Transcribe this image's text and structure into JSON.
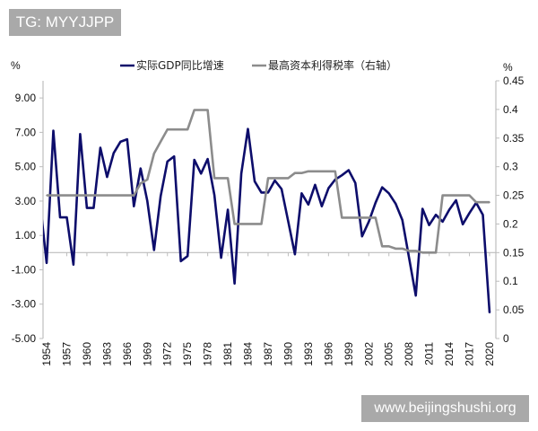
{
  "watermark_top": "TG: MYYJJPP",
  "watermark_bottom": "www.beijingshushi.org",
  "chart_data": {
    "type": "line",
    "left_unit": "%",
    "right_unit": "%",
    "ylim_left": [
      -5,
      10
    ],
    "ylim_right": [
      0,
      0.45
    ],
    "xlim": [
      1954,
      2020
    ],
    "left_tick_labels": [
      "9.00",
      "7.00",
      "5.00",
      "3.00",
      "1.00",
      "-1.00",
      "-3.00",
      "-5.00"
    ],
    "right_tick_labels": [
      "0.45",
      "0.4",
      "0.35",
      "0.3",
      "0.25",
      "0.2",
      "0.15",
      "0.1",
      "0.05",
      "0"
    ],
    "x_tick_labels": [
      "1954",
      "1957",
      "1960",
      "1963",
      "1966",
      "1969",
      "1972",
      "1975",
      "1978",
      "1981",
      "1984",
      "1987",
      "1990",
      "1993",
      "1996",
      "1999",
      "2002",
      "2005",
      "2008",
      "2011",
      "2014",
      "2017",
      "2020"
    ],
    "legend_position": "top",
    "grid": false,
    "x": [
      1953,
      1954,
      1955,
      1956,
      1957,
      1958,
      1959,
      1960,
      1961,
      1962,
      1963,
      1964,
      1965,
      1966,
      1967,
      1968,
      1969,
      1970,
      1971,
      1972,
      1973,
      1974,
      1975,
      1976,
      1977,
      1978,
      1979,
      1980,
      1981,
      1982,
      1983,
      1984,
      1985,
      1986,
      1987,
      1988,
      1989,
      1990,
      1991,
      1992,
      1993,
      1994,
      1995,
      1996,
      1997,
      1998,
      1999,
      2000,
      2001,
      2002,
      2003,
      2004,
      2005,
      2006,
      2007,
      2008,
      2009,
      2010,
      2011,
      2012,
      2013,
      2014,
      2015,
      2016,
      2017,
      2018,
      2019,
      2020
    ],
    "series": [
      {
        "name": "实际GDP同比增速",
        "axis": "left",
        "color": "#0d0d6b",
        "values": [
          3.0,
          -0.6,
          7.1,
          2.05,
          2.05,
          -0.7,
          6.9,
          2.6,
          2.6,
          6.1,
          4.4,
          5.8,
          6.45,
          6.6,
          2.7,
          4.9,
          3.0,
          0.15,
          3.3,
          5.3,
          5.6,
          -0.5,
          -0.2,
          5.4,
          4.6,
          5.45,
          3.35,
          -0.3,
          2.5,
          -1.8,
          4.6,
          7.2,
          4.15,
          3.5,
          3.5,
          4.2,
          3.7,
          1.8,
          -0.1,
          3.45,
          2.8,
          3.95,
          2.7,
          3.75,
          4.25,
          4.5,
          4.8,
          4.05,
          0.95,
          1.8,
          2.9,
          3.8,
          3.45,
          2.85,
          1.9,
          -0.3,
          -2.5,
          2.55,
          1.6,
          2.2,
          1.8,
          2.5,
          3.05,
          1.65,
          2.3,
          2.9,
          2.2,
          -3.5
        ]
      },
      {
        "name": "最高资本利得税率（右轴）",
        "axis": "right",
        "color": "#8c8c8c",
        "values": [
          null,
          0.25,
          0.25,
          0.25,
          0.25,
          0.25,
          0.25,
          0.25,
          0.25,
          0.25,
          0.25,
          0.25,
          0.25,
          0.25,
          0.25,
          0.271,
          0.2775,
          0.323,
          0.344,
          0.365,
          0.365,
          0.365,
          0.365,
          0.399,
          0.399,
          0.399,
          0.28,
          0.28,
          0.28,
          0.2,
          0.2,
          0.2,
          0.2,
          0.2,
          0.28,
          0.28,
          0.28,
          0.28,
          0.289,
          0.289,
          0.292,
          0.292,
          0.292,
          0.292,
          0.292,
          0.211,
          0.211,
          0.211,
          0.211,
          0.211,
          0.211,
          0.161,
          0.161,
          0.157,
          0.157,
          0.153,
          0.153,
          0.15,
          0.15,
          0.15,
          0.25,
          0.25,
          0.25,
          0.25,
          0.25,
          0.238,
          0.238,
          0.238
        ]
      }
    ]
  }
}
